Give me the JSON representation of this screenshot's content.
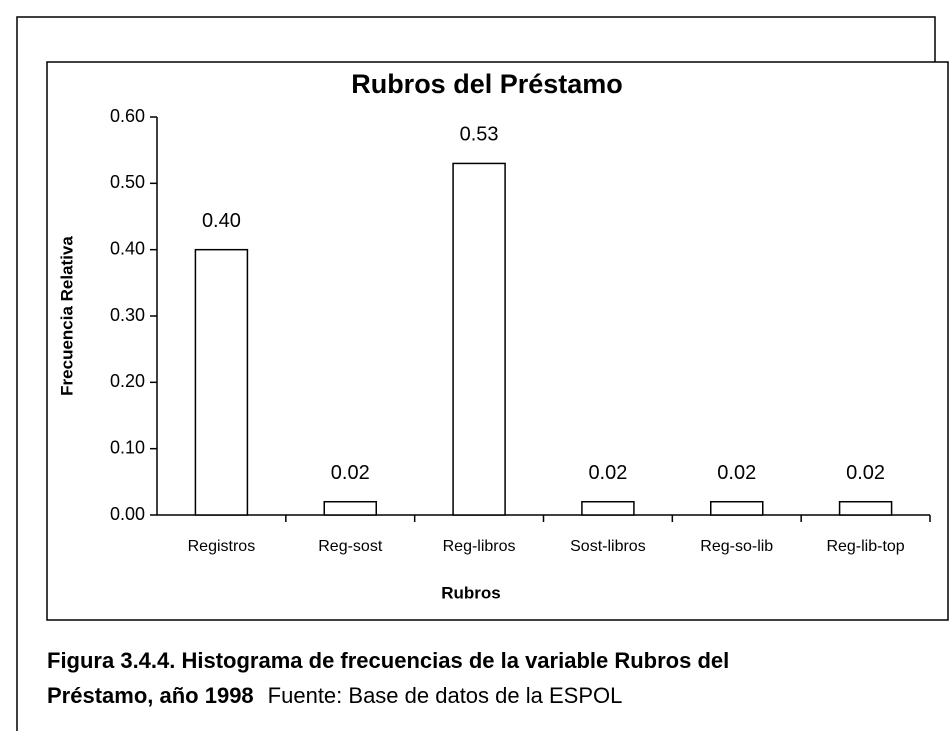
{
  "chart_data": {
    "type": "bar",
    "title": "Rubros del Préstamo",
    "x_label": "Rubros",
    "y_label": "Frecuencia Relativa",
    "categories": [
      "Registros",
      "Reg-sost",
      "Reg-libros",
      "Sost-libros",
      "Reg-so-lib",
      "Reg-lib-top"
    ],
    "values": [
      0.4,
      0.02,
      0.53,
      0.02,
      0.02,
      0.02
    ],
    "value_labels": [
      "0.40",
      "0.02",
      "0.53",
      "0.02",
      "0.02",
      "0.02"
    ],
    "color": "#ffffff",
    "ylim": [
      0,
      0.6
    ],
    "yticks": [
      {
        "value": 0,
        "label": "0.00"
      },
      {
        "value": 0.1,
        "label": "0.10"
      },
      {
        "value": 0.2,
        "label": "0.20"
      },
      {
        "value": 0.3,
        "label": "0.30"
      },
      {
        "value": 0.4,
        "label": "0.40"
      },
      {
        "value": 0.5,
        "label": "0.50"
      },
      {
        "value": 0.6,
        "label": "0.60"
      }
    ],
    "grid": false
  },
  "caption": {
    "bold": [
      "Figura 3.4.4. Histograma de frecuencias de la variable Rubros del",
      "Préstamo, año 1998"
    ],
    "source": "Fuente: Base de datos de la ESPOL"
  }
}
